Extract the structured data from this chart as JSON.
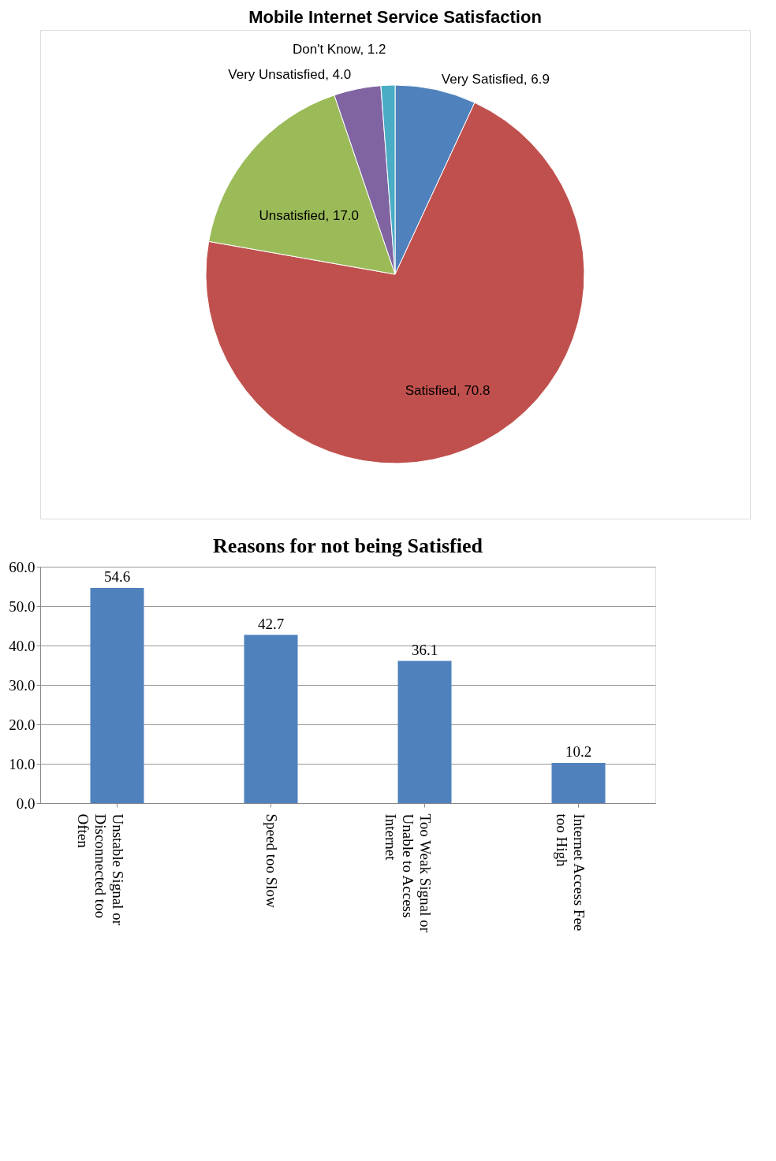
{
  "chart_data": [
    {
      "type": "pie",
      "title": "Mobile Internet Service Satisfaction",
      "categories": [
        "Very Satisfied",
        "Satisfied",
        "Unsatisfied",
        "Very Unsatisfied",
        "Don't Know"
      ],
      "values": [
        6.9,
        70.8,
        17.0,
        4.0,
        1.2
      ],
      "value_labels": [
        "6.9",
        "70.8",
        "17.0",
        "4.0",
        "1.2"
      ],
      "colors": [
        "#4f81bd",
        "#c0504d",
        "#9bbb59",
        "#8064a2",
        "#4bacc6"
      ],
      "legend": false
    },
    {
      "type": "bar",
      "title": "Reasons for not being Satisfied",
      "categories": [
        "Unstable Signal or Disconnected too Often",
        "Speed too Slow",
        "Too Weak Signal or Unable to Access Internet",
        "Internet Access Fee too High"
      ],
      "values": [
        54.6,
        42.7,
        36.1,
        10.2
      ],
      "color": "#4f81bd",
      "ylim": [
        0,
        60
      ],
      "yticks": [
        {
          "value": 0,
          "label": "0.0"
        },
        {
          "value": 10,
          "label": "10.0"
        },
        {
          "value": 20,
          "label": "20.0"
        },
        {
          "value": 30,
          "label": "30.0"
        },
        {
          "value": 40,
          "label": "40.0"
        },
        {
          "value": 50,
          "label": "50.0"
        },
        {
          "value": 60,
          "label": "60.0"
        }
      ],
      "grid": "y",
      "data_labels": true
    }
  ]
}
